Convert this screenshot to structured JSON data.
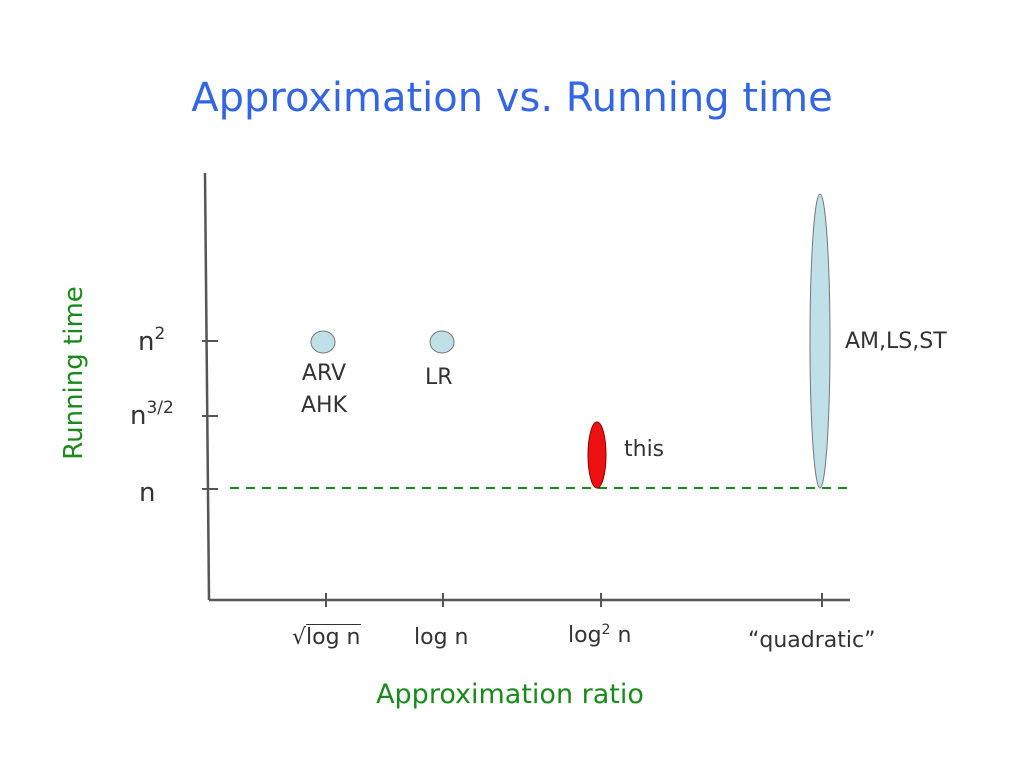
{
  "title": "Approximation vs. Running time",
  "x_axis_label": "Approximation ratio",
  "y_axis_label": "Running time",
  "y_ticks": [
    {
      "base": "n",
      "exp": "2"
    },
    {
      "base": "n",
      "exp": "3/2"
    },
    {
      "base": "n",
      "exp": ""
    }
  ],
  "x_ticks": [
    {
      "prefix": "√",
      "text": "log n"
    },
    {
      "text": "log n"
    },
    {
      "base": "log",
      "exp": "2",
      "rest": " n"
    },
    {
      "text": "“quadratic”"
    }
  ],
  "results": [
    {
      "label_lines": [
        "ARV",
        "AHK"
      ]
    },
    {
      "label_lines": [
        "LR"
      ]
    },
    {
      "label_lines": [
        "this"
      ]
    },
    {
      "label_lines": [
        "AM,LS,ST"
      ]
    }
  ],
  "colors": {
    "title": "#3366e6",
    "axis_labels": "#1a8a1a",
    "axes": "#555555",
    "bubble_fill": "#bfe0e6",
    "highlight_fill": "#ee1111",
    "dashed_line": "#1a8a1a",
    "text": "#333333"
  }
}
